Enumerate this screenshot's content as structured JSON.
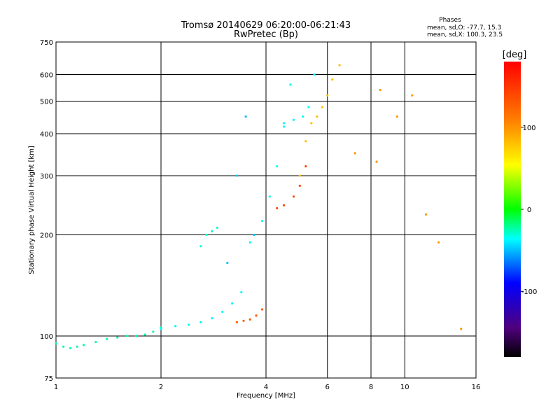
{
  "chart_data": {
    "type": "scatter",
    "title": "Tromsø 20140629 06:20:00-06:21:43",
    "subtitle": "RwPretec (Bp)",
    "xlabel": "Frequency [MHz]",
    "ylabel": "Stationary phase Virtual Height [km]",
    "x_scale": "log",
    "y_scale": "log",
    "xlim": [
      1,
      16
    ],
    "ylim": [
      75,
      750
    ],
    "x_ticks": [
      1,
      2,
      4,
      6,
      8,
      10,
      16
    ],
    "x_grid_lines": [
      1,
      2,
      4,
      6,
      8,
      10,
      16
    ],
    "y_ticks": [
      75,
      100,
      200,
      300,
      400,
      500,
      600,
      750
    ],
    "y_grid_lines": [
      100,
      200,
      300,
      400,
      500,
      600
    ],
    "grid": true,
    "stats": {
      "heading": "Phases",
      "line_o": "mean, sd,O: -77.7, 15.3",
      "line_x": "mean, sd,X: 100.3, 23.5"
    },
    "colorbar": {
      "label": "[deg]",
      "range": [
        -180,
        180
      ],
      "ticks": [
        100,
        0,
        -100
      ],
      "colormap": "rainbow"
    },
    "series": [
      {
        "x": [
          1.0,
          1.05,
          1.1,
          1.15,
          1.2,
          1.3,
          1.4,
          1.5,
          1.6,
          1.7,
          1.8,
          1.9,
          2.0
        ],
        "y": [
          95,
          93,
          92,
          93,
          94,
          96,
          98,
          99,
          100,
          100,
          101,
          103,
          106
        ],
        "phase": -50
      },
      {
        "x": [
          2.0,
          2.2,
          2.4,
          2.6,
          2.8,
          3.0,
          3.2,
          3.4
        ],
        "y": [
          105,
          107,
          108,
          110,
          113,
          118,
          125,
          135
        ],
        "phase": -80
      },
      {
        "x": [
          3.3,
          3.45,
          3.6,
          3.75,
          3.9
        ],
        "y": [
          110,
          111,
          112,
          115,
          120
        ],
        "phase": 150
      },
      {
        "x": [
          2.6,
          2.7,
          2.8,
          2.9
        ],
        "y": [
          185,
          200,
          205,
          210
        ],
        "phase": -60
      },
      {
        "x": [
          3.1,
          3.3,
          3.5,
          3.7
        ],
        "y": [
          165,
          300,
          450,
          200
        ],
        "phase": -100
      },
      {
        "x": [
          3.6,
          3.9,
          4.1,
          4.3,
          4.5,
          4.7
        ],
        "y": [
          190,
          220,
          260,
          320,
          420,
          560
        ],
        "phase": -70
      },
      {
        "x": [
          4.3,
          4.5,
          4.8,
          5.0,
          5.2
        ],
        "y": [
          240,
          245,
          260,
          280,
          320
        ],
        "phase": 155
      },
      {
        "x": [
          5.0,
          5.2,
          5.4,
          5.6,
          5.8,
          6.0,
          6.2,
          6.5
        ],
        "y": [
          300,
          380,
          430,
          450,
          480,
          520,
          580,
          640
        ],
        "phase": 115
      },
      {
        "x": [
          4.5,
          4.8,
          5.1,
          5.3,
          5.5
        ],
        "y": [
          430,
          440,
          450,
          480,
          600
        ],
        "phase": -80
      },
      {
        "x": [
          7.2,
          8.3,
          8.5,
          9.5,
          10.5,
          11.5,
          12.5,
          14.5
        ],
        "y": [
          350,
          330,
          540,
          450,
          520,
          230,
          190,
          105
        ],
        "phase": 130
      }
    ]
  }
}
